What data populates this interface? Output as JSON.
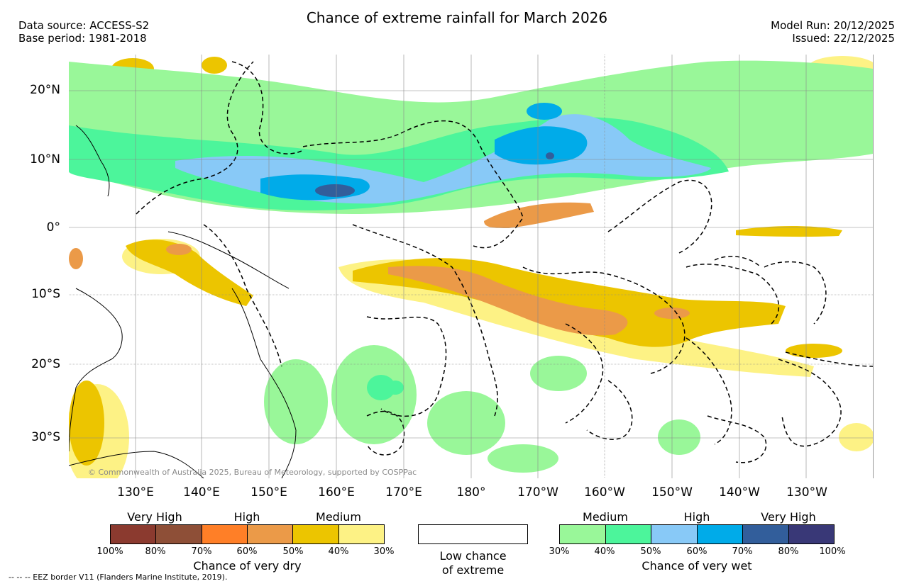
{
  "header": {
    "title": "Chance of extreme rainfall for March 2026",
    "data_source": "Data source: ACCESS-S2",
    "base_period": "Base period: 1981-2018",
    "model_run": "Model Run: 20/12/2025",
    "issued": "Issued: 22/12/2025"
  },
  "map": {
    "lat_labels": [
      "20°N",
      "10°N",
      "0°",
      "10°S",
      "20°S",
      "30°S"
    ],
    "lon_labels": [
      "130°E",
      "140°E",
      "150°E",
      "160°E",
      "170°E",
      "180°",
      "170°W",
      "160°W",
      "150°W",
      "140°W",
      "130°W"
    ],
    "copyright": "© Commonwealth of Australia 2025, Bureau of Meteorology, supported by COSPPac"
  },
  "legend": {
    "dry": {
      "title": "Chance of very dry",
      "categories": [
        "Very High",
        "High",
        "Medium"
      ],
      "colors": [
        "#8b3a2f",
        "#8e4f37",
        "#ff7f27",
        "#eb9a48",
        "#ecc500",
        "#fdf285"
      ],
      "percents": [
        "100%",
        "80%",
        "70%",
        "60%",
        "50%",
        "40%",
        "30%"
      ]
    },
    "low": {
      "line1": "Low chance",
      "line2": "of extreme"
    },
    "wet": {
      "title": "Chance of very wet",
      "categories": [
        "Medium",
        "High",
        "Very High"
      ],
      "colors": [
        "#99f799",
        "#4cf59b",
        "#88c9f7",
        "#00abe9",
        "#325e9b",
        "#393877"
      ],
      "percents": [
        "30%",
        "40%",
        "50%",
        "60%",
        "70%",
        "80%",
        "100%"
      ]
    }
  },
  "footer": {
    "eez_note": "--  --  -- EEZ border V11 (Flanders Marine Institute, 2019)."
  }
}
